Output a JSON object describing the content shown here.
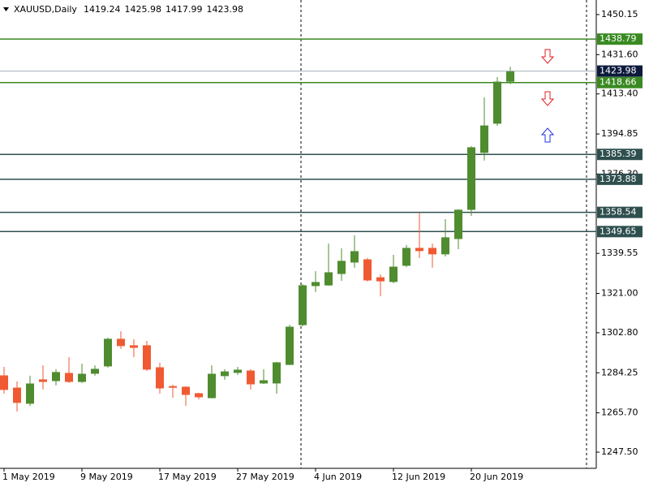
{
  "chart_data": {
    "type": "candlestick",
    "title": "XAUUSD,Daily",
    "categories": [
      "1 May 2019",
      null,
      null,
      null,
      null,
      null,
      "9 May 2019",
      null,
      null,
      null,
      null,
      null,
      "17 May 2019",
      null,
      null,
      null,
      null,
      null,
      "27 May 2019",
      null,
      null,
      null,
      null,
      null,
      "4 Jun 2019",
      null,
      null,
      null,
      null,
      null,
      "12 Jun 2019",
      null,
      null,
      null,
      null,
      null,
      "20 Jun 2019",
      null,
      null,
      null
    ],
    "open": [
      1282.86,
      1277.2,
      1270.1,
      1281.0,
      1280.6,
      1284.0,
      1280.2,
      1284.0,
      1287.4,
      1299.8,
      1296.8,
      1296.8,
      1286.6,
      1277.9,
      1277.6,
      1274.6,
      1272.7,
      1282.9,
      1284.4,
      1285.1,
      1279.5,
      1279.5,
      1288.1,
      1306.5,
      1324.6,
      1324.9,
      1330.2,
      1335.5,
      1336.6,
      1328.3,
      1326.5,
      1334.0,
      1341.9,
      1341.9,
      1339.3,
      1346.4,
      1359.9,
      1386.3,
      1399.8,
      1419.24
    ],
    "high": [
      1287.0,
      1280.2,
      1282.9,
      1287.7,
      1285.9,
      1291.5,
      1288.5,
      1287.7,
      1300.5,
      1303.5,
      1299.8,
      1299.0,
      1288.9,
      1278.7,
      1278.0,
      1275.0,
      1287.7,
      1285.9,
      1287.0,
      1285.9,
      1285.9,
      1289.3,
      1306.5,
      1325.3,
      1331.3,
      1344.1,
      1341.9,
      1347.9,
      1337.4,
      1329.9,
      1338.9,
      1343.4,
      1358.4,
      1344.1,
      1355.4,
      1359.9,
      1389.2,
      1411.8,
      1421.2,
      1425.98
    ],
    "low": [
      1274.6,
      1266.3,
      1268.9,
      1276.5,
      1278.4,
      1279.5,
      1279.5,
      1282.9,
      1286.6,
      1295.3,
      1291.5,
      1285.1,
      1274.6,
      1272.7,
      1268.9,
      1271.9,
      1272.4,
      1281.0,
      1283.3,
      1276.5,
      1279.1,
      1274.6,
      1287.8,
      1305.8,
      1321.6,
      1324.6,
      1326.8,
      1332.9,
      1326.5,
      1319.7,
      1325.7,
      1333.2,
      1337.4,
      1332.9,
      1338.1,
      1341.5,
      1356.9,
      1382.5,
      1398.6,
      1417.99
    ],
    "close": [
      1276.5,
      1270.5,
      1279.1,
      1280.2,
      1284.4,
      1280.2,
      1283.6,
      1285.9,
      1299.8,
      1296.8,
      1296.0,
      1285.9,
      1277.2,
      1277.6,
      1274.2,
      1273.1,
      1283.6,
      1284.7,
      1285.5,
      1279.1,
      1280.6,
      1288.9,
      1305.4,
      1324.6,
      1326.1,
      1330.6,
      1335.9,
      1340.4,
      1327.2,
      1326.8,
      1333.2,
      1341.9,
      1340.8,
      1339.3,
      1346.8,
      1359.6,
      1388.5,
      1398.6,
      1418.9,
      1423.98
    ],
    "up_color": "#4f8c2f",
    "down_color": "#f05a32",
    "last_color": "#0c1a3c",
    "ylim": [
      1240,
      1456.9
    ],
    "yticks": [
      1450.15,
      {
        "value": 1431.6,
        "label": "1431.60"
      },
      {
        "value": 1413.4,
        "label": "1413.40"
      },
      1394.85,
      {
        "value": 1376.3,
        "label": "1376.30"
      },
      1339.55,
      {
        "value": 1321.0,
        "label": "1321.00"
      },
      {
        "value": 1302.8,
        "label": "1302.80"
      },
      1284.25,
      {
        "value": 1265.7,
        "label": "1265.70"
      },
      {
        "value": 1247.5,
        "label": "1247.50"
      }
    ],
    "levels": [
      {
        "value": 1438.79,
        "color": "#3a8a22"
      },
      {
        "value": 1418.66,
        "color": "#3a8a22"
      },
      {
        "value": 1385.39,
        "color": "#2f4f4f"
      },
      {
        "value": 1373.88,
        "color": "#2f4f4f"
      },
      {
        "value": 1358.54,
        "color": "#2f4f4f"
      },
      {
        "value": 1349.65,
        "color": "#2f4f4f"
      }
    ]
  }
}
